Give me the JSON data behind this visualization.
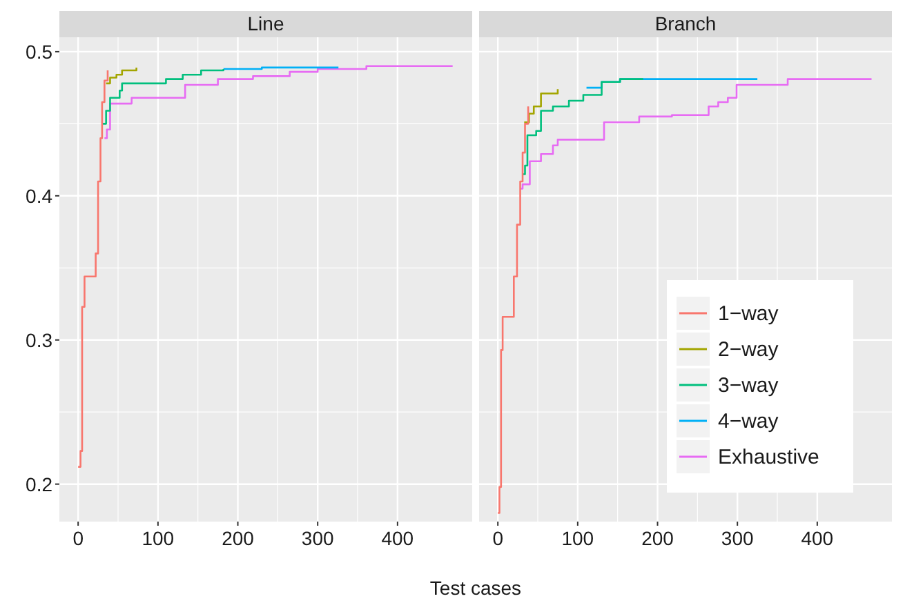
{
  "chart_data": [
    {
      "type": "step",
      "title": "Line",
      "xlabel": "Test cases",
      "xlim": [
        -23.5,
        493.5
      ],
      "xticks": [
        0,
        100,
        200,
        300,
        400
      ],
      "ylim": [
        0.174,
        0.51
      ],
      "yticks": [
        0.2,
        0.3,
        0.4,
        0.5
      ],
      "grid": true,
      "legend": false,
      "series": [
        {
          "color": "#f8766d",
          "x": [
            0,
            3,
            5,
            8,
            18,
            22,
            25,
            28,
            30,
            33,
            37
          ],
          "values": [
            0.212,
            0.223,
            0.323,
            0.344,
            0.344,
            0.36,
            0.41,
            0.44,
            0.465,
            0.48,
            0.487
          ]
        },
        {
          "color": "#a3a500",
          "x": [
            35,
            40,
            48,
            55,
            65,
            73
          ],
          "values": [
            0.478,
            0.482,
            0.484,
            0.487,
            0.487,
            0.489
          ]
        },
        {
          "color": "#00bf7d",
          "x": [
            31,
            35,
            40,
            52,
            55,
            110,
            131,
            154,
            182
          ],
          "values": [
            0.45,
            0.459,
            0.468,
            0.473,
            0.478,
            0.481,
            0.484,
            0.487,
            0.488
          ]
        },
        {
          "color": "#00b0f6",
          "x": [
            182,
            230,
            326
          ],
          "values": [
            0.488,
            0.489,
            0.489
          ]
        },
        {
          "color": "#e76bf3",
          "x": [
            33,
            36,
            40,
            67,
            134,
            175,
            219,
            265,
            300,
            361,
            469
          ],
          "values": [
            0.44,
            0.446,
            0.464,
            0.468,
            0.477,
            0.481,
            0.483,
            0.486,
            0.488,
            0.49,
            0.49
          ]
        }
      ]
    },
    {
      "type": "step",
      "title": "Branch",
      "xlim": [
        -23.5,
        493.5
      ],
      "xticks": [
        0,
        100,
        200,
        300,
        400
      ],
      "ylim": [
        0.174,
        0.51
      ],
      "yticks": [
        0.2,
        0.3,
        0.4,
        0.5
      ],
      "grid": true,
      "tick_labels": "x",
      "legend": "bottom right",
      "series": [
        {
          "name": "1−way",
          "color": "#f8766d",
          "x": [
            0,
            2,
            4,
            6,
            17,
            20,
            24,
            28,
            31,
            34,
            38
          ],
          "values": [
            0.18,
            0.198,
            0.293,
            0.316,
            0.316,
            0.344,
            0.38,
            0.41,
            0.43,
            0.45,
            0.462
          ]
        },
        {
          "name": "2−way",
          "color": "#a3a500",
          "x": [
            33,
            39,
            45,
            54,
            75
          ],
          "values": [
            0.451,
            0.457,
            0.462,
            0.471,
            0.474
          ]
        },
        {
          "name": "3−way",
          "color": "#00bf7d",
          "x": [
            31,
            34,
            37,
            48,
            54,
            69,
            89,
            107,
            130,
            153,
            182
          ],
          "values": [
            0.415,
            0.421,
            0.442,
            0.445,
            0.459,
            0.462,
            0.466,
            0.47,
            0.479,
            0.481,
            0.481
          ]
        },
        {
          "name": "4−way",
          "color": "#00b0f6",
          "x": [
            111,
            130,
            153,
            325
          ],
          "values": [
            0.475,
            0.479,
            0.481,
            0.481
          ]
        },
        {
          "name": "Exhaustive",
          "color": "#e76bf3",
          "x": [
            28,
            31,
            40,
            54,
            69,
            75,
            133,
            177,
            218,
            264,
            276,
            288,
            299,
            363,
            468
          ],
          "values": [
            0.405,
            0.408,
            0.424,
            0.429,
            0.435,
            0.439,
            0.451,
            0.455,
            0.456,
            0.462,
            0.465,
            0.468,
            0.477,
            0.481,
            0.481
          ]
        }
      ]
    }
  ]
}
